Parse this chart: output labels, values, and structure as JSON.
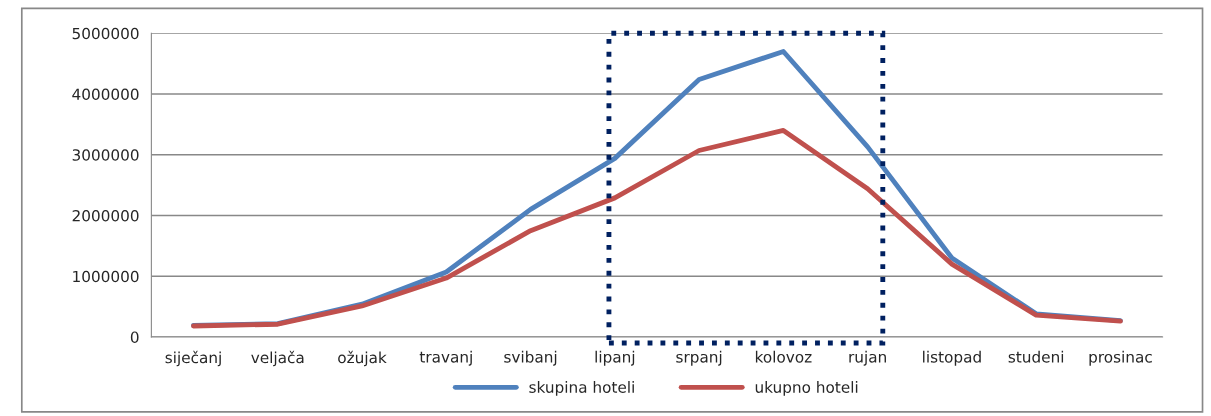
{
  "chart_data": {
    "type": "line",
    "categories": [
      "siječanj",
      "veljača",
      "ožujak",
      "travanj",
      "svibanj",
      "lipanj",
      "srpanj",
      "kolovoz",
      "rujan",
      "listopad",
      "studeni",
      "prosinac"
    ],
    "series": [
      {
        "name": "skupina hoteli",
        "color": "#4f81bd",
        "values": [
          190000,
          220000,
          540000,
          1070000,
          2100000,
          2940000,
          4240000,
          4700000,
          3130000,
          1300000,
          380000,
          270000
        ]
      },
      {
        "name": "ukupno hoteli",
        "color": "#c0504d",
        "values": [
          180000,
          210000,
          510000,
          970000,
          1750000,
          2290000,
          3070000,
          3400000,
          2440000,
          1200000,
          360000,
          260000
        ]
      }
    ],
    "ylim": [
      0,
      5000000
    ],
    "yticks": [
      0,
      1000000,
      2000000,
      3000000,
      4000000,
      5000000
    ],
    "grid": "y",
    "legend": "bottom",
    "marker": "none",
    "line_style": "solid"
  }
}
